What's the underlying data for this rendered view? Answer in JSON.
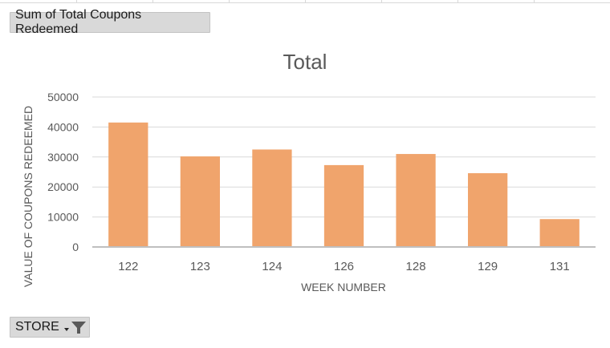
{
  "pivot": {
    "value_field_label": "Sum of Total Coupons Redeemed",
    "axis_field_label": "STORE"
  },
  "icons": {
    "axis_field_sort": "dropdown-arrow-icon",
    "axis_field_filter": "filter-icon"
  },
  "colors": {
    "bar": "#f0a46c",
    "gridline": "#d9d9d9",
    "axis_line": "#bfbfbf",
    "text": "#595959",
    "field_button_bg": "#d9d9d9"
  },
  "chart_data": {
    "type": "bar",
    "title": "Total",
    "xlabel": "WEEK NUMBER",
    "ylabel": "VALUE OF COUPONS REDEEMED",
    "categories": [
      "122",
      "123",
      "124",
      "126",
      "128",
      "129",
      "131"
    ],
    "values": [
      41500,
      30200,
      32500,
      27300,
      31000,
      24600,
      9300
    ],
    "ylim": [
      0,
      50000
    ],
    "yticks": [
      0,
      10000,
      20000,
      30000,
      40000,
      50000
    ],
    "grid": true,
    "legend": "none"
  }
}
